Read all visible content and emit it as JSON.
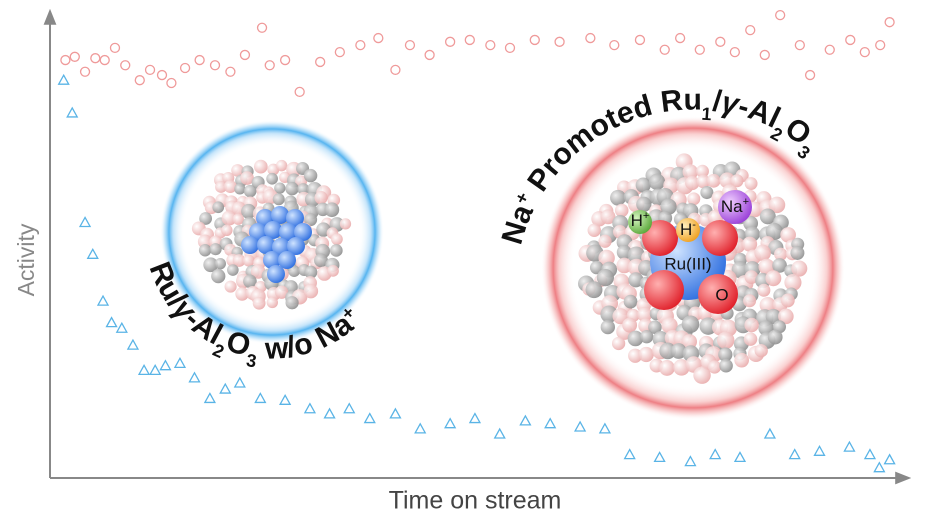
{
  "chart_data": {
    "type": "scatter",
    "x_label": "Time on stream",
    "y_label": "Activity",
    "xlim": [
      0,
      100
    ],
    "ylim": [
      0,
      100
    ],
    "series": [
      {
        "marker": "circle",
        "color": "#ef9a9a",
        "x": [
          1.8,
          2.9,
          4.1,
          5.3,
          6.4,
          7.6,
          8.8,
          10.5,
          11.7,
          13.1,
          14.2,
          15.8,
          17.5,
          19.3,
          21.1,
          22.8,
          24.8,
          25.7,
          27.5,
          29.2,
          31.6,
          33.9,
          36.3,
          38.4,
          40.4,
          42.1,
          44.4,
          46.8,
          49.1,
          51.5,
          53.8,
          56.7,
          59.6,
          63.2,
          66,
          69,
          71.9,
          73.7,
          76,
          78.4,
          80.1,
          81.9,
          83.6,
          85.4,
          87.7,
          88.9,
          91.2,
          93.6,
          95.3,
          97.1,
          98.2
        ],
        "y": [
          89.3,
          90,
          86.8,
          89.7,
          89.3,
          91.9,
          88.2,
          85,
          87.2,
          86.1,
          84.4,
          87.6,
          89.3,
          88.2,
          86.8,
          90.4,
          96.2,
          88.2,
          89.3,
          82.5,
          88.9,
          91,
          92.5,
          94,
          87.2,
          92.5,
          90.4,
          93.2,
          93.6,
          92.5,
          91.9,
          93.6,
          93.2,
          94,
          92.5,
          93.6,
          91.5,
          94,
          91.5,
          93.2,
          91,
          95.7,
          90.4,
          98.9,
          92.5,
          86.1,
          91.5,
          93.6,
          91,
          92.5,
          97.4
        ]
      },
      {
        "marker": "triangle",
        "color": "#5ab4e6",
        "x": [
          1.6,
          2.6,
          4.1,
          5,
          6.2,
          7.2,
          8.4,
          9.7,
          11,
          12.3,
          13.5,
          15.2,
          16.9,
          18.7,
          20.5,
          22.2,
          24.6,
          27.5,
          30.4,
          32.7,
          35,
          37.4,
          40.4,
          43.3,
          46.8,
          49.7,
          52.6,
          55.6,
          58.5,
          62,
          64.9,
          67.8,
          71.3,
          74.9,
          77.8,
          80.7,
          84.2,
          87.1,
          90,
          93.5,
          95.9,
          97,
          98.2
        ],
        "y": [
          85,
          78,
          54.6,
          47.8,
          37.8,
          33.2,
          32,
          28.4,
          23,
          23,
          24,
          24.5,
          21.4,
          17,
          19,
          20.3,
          17,
          16.6,
          14.8,
          13.7,
          14.8,
          12.7,
          13.7,
          10.5,
          11.6,
          12.7,
          9.4,
          12.2,
          11.6,
          10.9,
          10.5,
          5,
          4.4,
          3.5,
          5,
          4.4,
          9.4,
          5,
          5.7,
          6.6,
          5,
          2.2,
          3.9
        ]
      }
    ]
  },
  "illustrations": {
    "left_label": [
      "Ru/",
      "γ",
      "-Al",
      "2",
      "O",
      "3",
      " w/o Na",
      "+"
    ],
    "right_label": [
      "Na",
      "+",
      " Promoted Ru",
      "1",
      "/",
      "γ",
      "-Al",
      "2",
      "O",
      "3"
    ],
    "species": {
      "proton": [
        "H",
        "+"
      ],
      "hydride": [
        "H",
        "-"
      ],
      "sodium": [
        "Na",
        "+"
      ],
      "ruthenium": "Ru(III)",
      "oxygen": "O"
    }
  }
}
